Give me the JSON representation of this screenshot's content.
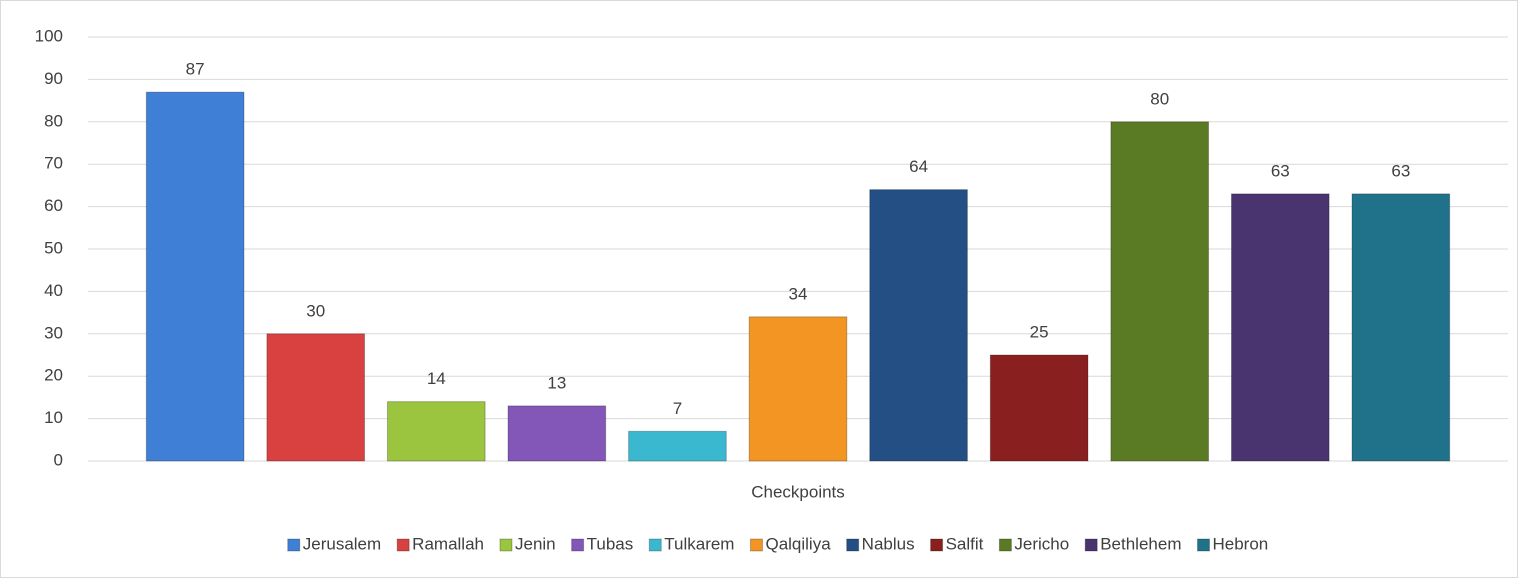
{
  "chart_data": {
    "type": "bar",
    "categories": [
      "Checkpoints"
    ],
    "series": [
      {
        "name": "Jerusalem",
        "color": "#3f7fd6",
        "values": [
          87
        ]
      },
      {
        "name": "Ramallah",
        "color": "#d94040",
        "values": [
          30
        ]
      },
      {
        "name": "Jenin",
        "color": "#9bc43f",
        "values": [
          14
        ]
      },
      {
        "name": "Tubas",
        "color": "#8257b8",
        "values": [
          13
        ]
      },
      {
        "name": "Tulkarem",
        "color": "#3ab8d0",
        "values": [
          7
        ]
      },
      {
        "name": "Qalqiliya",
        "color": "#f29522",
        "values": [
          34
        ]
      },
      {
        "name": "Nablus",
        "color": "#234f85",
        "values": [
          64
        ]
      },
      {
        "name": "Salfit",
        "color": "#8a1f1f",
        "values": [
          25
        ]
      },
      {
        "name": "Jericho",
        "color": "#5b7a24",
        "values": [
          80
        ]
      },
      {
        "name": "Bethlehem",
        "color": "#4a3470",
        "values": [
          63
        ]
      },
      {
        "name": "Hebron",
        "color": "#1f7289",
        "values": [
          63
        ]
      }
    ],
    "ylim": [
      0,
      100
    ],
    "yticks": [
      0,
      10,
      20,
      30,
      40,
      50,
      60,
      70,
      80,
      90,
      100
    ],
    "grid": true,
    "legend": "bottom"
  }
}
